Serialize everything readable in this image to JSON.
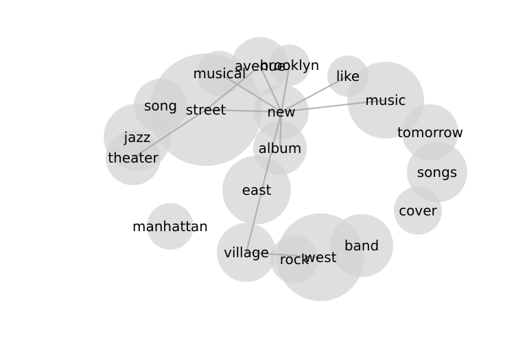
{
  "colors": {
    "bubble": "#d3d3d3",
    "edge": "#a9a9a9",
    "text": "#000000",
    "background": "#ffffff"
  },
  "nodes": [
    {
      "id": "street",
      "label": "street",
      "weight": 8.2
    },
    {
      "id": "west",
      "label": "west",
      "weight": 6.4
    },
    {
      "id": "music",
      "label": "music",
      "weight": 5.6
    },
    {
      "id": "east",
      "label": "east",
      "weight": 5.0
    },
    {
      "id": "jazz",
      "label": "jazz",
      "weight": 4.9
    },
    {
      "id": "band",
      "label": "band",
      "weight": 4.6
    },
    {
      "id": "songs",
      "label": "songs",
      "weight": 4.4
    },
    {
      "id": "village",
      "label": "village",
      "weight": 4.3
    },
    {
      "id": "avenue",
      "label": "avenue",
      "weight": 4.2
    },
    {
      "id": "tomorrow",
      "label": "tomorrow",
      "weight": 4.1
    },
    {
      "id": "new",
      "label": "new",
      "weight": 4.0
    },
    {
      "id": "theater",
      "label": "theater",
      "weight": 4.0
    },
    {
      "id": "album",
      "label": "album",
      "weight": 3.9
    },
    {
      "id": "song",
      "label": "song",
      "weight": 3.9
    },
    {
      "id": "cover",
      "label": "cover",
      "weight": 3.5
    },
    {
      "id": "rock",
      "label": "rock",
      "weight": 3.5
    },
    {
      "id": "manhattan",
      "label": "manhattan",
      "weight": 3.4
    },
    {
      "id": "musical",
      "label": "musical",
      "weight": 3.3
    },
    {
      "id": "brooklyn",
      "label": "brooklyn",
      "weight": 3.0
    },
    {
      "id": "like",
      "label": "like",
      "weight": 3.0
    }
  ],
  "edges": [
    [
      "new",
      "street"
    ],
    [
      "new",
      "musical"
    ],
    [
      "new",
      "avenue"
    ],
    [
      "new",
      "brooklyn"
    ],
    [
      "new",
      "like"
    ],
    [
      "new",
      "music"
    ],
    [
      "new",
      "album"
    ],
    [
      "new",
      "village"
    ],
    [
      "street",
      "theater"
    ],
    [
      "street",
      "avenue"
    ],
    [
      "village",
      "west"
    ]
  ]
}
